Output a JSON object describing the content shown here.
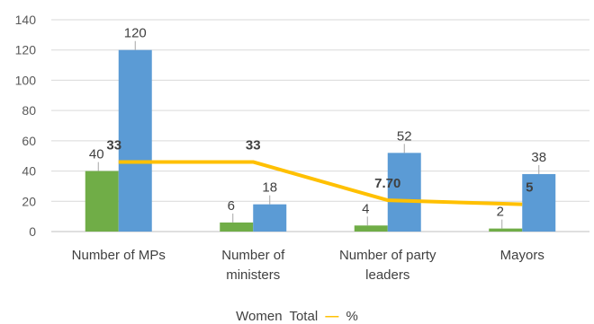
{
  "chart_data": {
    "type": "bar",
    "categories": [
      [
        "Number of MPs"
      ],
      [
        "Number of",
        "ministers"
      ],
      [
        "Number of party",
        "leaders"
      ],
      [
        "Mayors"
      ]
    ],
    "series": [
      {
        "name": "Women",
        "kind": "bar",
        "values": [
          40,
          6,
          4,
          2
        ],
        "labels": [
          "40",
          "6",
          "4",
          "2"
        ],
        "color": "#70ad47"
      },
      {
        "name": "Total",
        "kind": "bar",
        "values": [
          120,
          18,
          52,
          38
        ],
        "labels": [
          "120",
          "18",
          "52",
          "38"
        ],
        "color": "#5b9bd5"
      },
      {
        "name": "%",
        "kind": "line",
        "values": [
          33,
          33,
          7.7,
          5
        ],
        "labels": [
          "33",
          "33",
          "7.70",
          "5"
        ],
        "color": "#ffc000"
      }
    ],
    "yticks": [
      "0",
      "20",
      "40",
      "60",
      "80",
      "100",
      "120",
      "140"
    ],
    "ylim": [
      0,
      140
    ],
    "grid": true,
    "legend": {
      "position": "bottom",
      "items": [
        "Women",
        "Total",
        "—",
        "%"
      ]
    }
  }
}
